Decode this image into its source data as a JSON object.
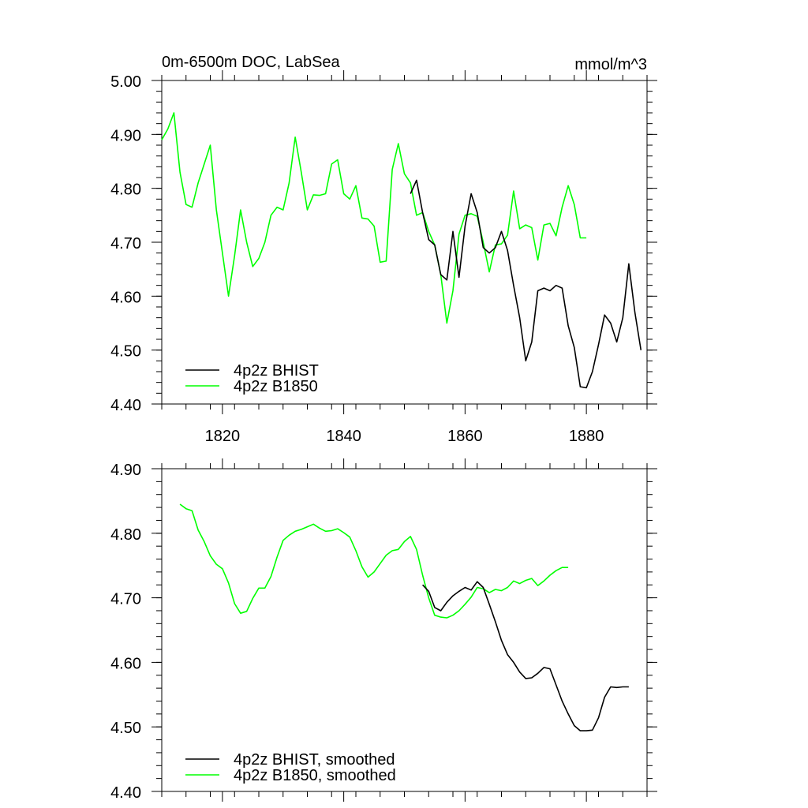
{
  "chart_data": [
    {
      "type": "line",
      "title": "0m-6500m DOC, LabSea",
      "units": "mmol/m^3",
      "xlim": [
        1810,
        1890
      ],
      "ylim": [
        4.4,
        5.0
      ],
      "x_ticks": [
        1820,
        1840,
        1860,
        1880
      ],
      "y_ticks": [
        "4.40",
        "4.50",
        "4.60",
        "4.70",
        "4.80",
        "4.90",
        "5.00"
      ],
      "legend_position": "bottom-left",
      "series": [
        {
          "name": "4p2z BHIST",
          "color": "#000000",
          "x": [
            1851,
            1852,
            1853,
            1854,
            1855,
            1856,
            1857,
            1858,
            1859,
            1860,
            1861,
            1862,
            1863,
            1864,
            1865,
            1866,
            1867,
            1868,
            1869,
            1870,
            1871,
            1872,
            1873,
            1874,
            1875,
            1876,
            1877,
            1878,
            1879,
            1880,
            1881,
            1882,
            1883,
            1884,
            1885,
            1886,
            1887,
            1888,
            1889
          ],
          "y": [
            4.79,
            4.815,
            4.755,
            4.705,
            4.695,
            4.64,
            4.63,
            4.72,
            4.635,
            4.73,
            4.79,
            4.755,
            4.69,
            4.68,
            4.69,
            4.72,
            4.685,
            4.62,
            4.56,
            4.48,
            4.515,
            4.61,
            4.615,
            4.61,
            4.62,
            4.615,
            4.545,
            4.505,
            4.432,
            4.43,
            4.46,
            4.51,
            4.565,
            4.55,
            4.515,
            4.56,
            4.66,
            4.57,
            4.5
          ]
        },
        {
          "name": "4p2z B1850",
          "color": "#00ff00",
          "x": [
            1810,
            1811,
            1812,
            1813,
            1814,
            1815,
            1816,
            1817,
            1818,
            1819,
            1820,
            1821,
            1822,
            1823,
            1824,
            1825,
            1826,
            1827,
            1828,
            1829,
            1830,
            1831,
            1832,
            1833,
            1834,
            1835,
            1836,
            1837,
            1838,
            1839,
            1840,
            1841,
            1842,
            1843,
            1844,
            1845,
            1846,
            1847,
            1848,
            1849,
            1850,
            1851,
            1852,
            1853,
            1854,
            1855,
            1856,
            1857,
            1858,
            1859,
            1860,
            1861,
            1862,
            1863,
            1864,
            1865,
            1866,
            1867,
            1868,
            1869,
            1870,
            1871,
            1872,
            1873,
            1874,
            1875,
            1876,
            1877,
            1878,
            1879,
            1880
          ],
          "y": [
            4.89,
            4.91,
            4.94,
            4.83,
            4.77,
            4.765,
            4.81,
            4.845,
            4.88,
            4.76,
            4.68,
            4.6,
            4.675,
            4.76,
            4.7,
            4.655,
            4.67,
            4.7,
            4.75,
            4.765,
            4.76,
            4.81,
            4.895,
            4.83,
            4.76,
            4.788,
            4.787,
            4.79,
            4.845,
            4.853,
            4.79,
            4.78,
            4.805,
            4.745,
            4.743,
            4.73,
            4.663,
            4.665,
            4.835,
            4.883,
            4.827,
            4.81,
            4.75,
            4.755,
            4.72,
            4.695,
            4.64,
            4.55,
            4.61,
            4.715,
            4.75,
            4.753,
            4.748,
            4.7,
            4.645,
            4.695,
            4.697,
            4.713,
            4.795,
            4.725,
            4.732,
            4.727,
            4.667,
            4.732,
            4.735,
            4.712,
            4.765,
            4.805,
            4.77,
            4.708,
            4.708
          ]
        }
      ]
    },
    {
      "type": "line",
      "xlim": [
        1810,
        1890
      ],
      "ylim": [
        4.4,
        4.9
      ],
      "y_ticks": [
        "4.40",
        "4.50",
        "4.60",
        "4.70",
        "4.80",
        "4.90"
      ],
      "legend_position": "bottom-left",
      "series": [
        {
          "name": "4p2z BHIST, smoothed",
          "color": "#000000",
          "x": [
            1853,
            1854,
            1855,
            1856,
            1857,
            1858,
            1859,
            1860,
            1861,
            1862,
            1863,
            1864,
            1865,
            1866,
            1867,
            1868,
            1869,
            1870,
            1871,
            1872,
            1873,
            1874,
            1875,
            1876,
            1877,
            1878,
            1879,
            1880,
            1881,
            1882,
            1883,
            1884,
            1885,
            1886,
            1887
          ],
          "y": [
            4.72,
            4.71,
            4.685,
            4.68,
            4.693,
            4.703,
            4.71,
            4.716,
            4.712,
            4.725,
            4.716,
            4.69,
            4.663,
            4.634,
            4.612,
            4.6,
            4.585,
            4.575,
            4.576,
            4.583,
            4.592,
            4.59,
            4.565,
            4.54,
            4.52,
            4.502,
            4.494,
            4.494,
            4.495,
            4.514,
            4.546,
            4.562,
            4.561,
            4.562,
            4.562
          ]
        },
        {
          "name": "4p2z B1850, smoothed",
          "color": "#00ff00",
          "x": [
            1813,
            1814,
            1815,
            1816,
            1817,
            1818,
            1819,
            1820,
            1821,
            1822,
            1823,
            1824,
            1825,
            1826,
            1827,
            1828,
            1829,
            1830,
            1831,
            1832,
            1833,
            1834,
            1835,
            1836,
            1837,
            1838,
            1839,
            1840,
            1841,
            1842,
            1843,
            1844,
            1845,
            1846,
            1847,
            1848,
            1849,
            1850,
            1851,
            1852,
            1853,
            1854,
            1855,
            1856,
            1857,
            1858,
            1859,
            1860,
            1861,
            1862,
            1863,
            1864,
            1865,
            1866,
            1867,
            1868,
            1869,
            1870,
            1871,
            1872,
            1873,
            1874,
            1875,
            1876,
            1877
          ],
          "y": [
            4.845,
            4.838,
            4.835,
            4.805,
            4.787,
            4.765,
            4.752,
            4.745,
            4.723,
            4.691,
            4.676,
            4.679,
            4.699,
            4.715,
            4.715,
            4.733,
            4.763,
            4.789,
            4.797,
            4.803,
            4.806,
            4.81,
            4.814,
            4.808,
            4.803,
            4.804,
            4.807,
            4.801,
            4.794,
            4.773,
            4.748,
            4.732,
            4.74,
            4.753,
            4.766,
            4.773,
            4.775,
            4.787,
            4.795,
            4.775,
            4.735,
            4.7,
            4.673,
            4.67,
            4.669,
            4.673,
            4.68,
            4.69,
            4.701,
            4.716,
            4.714,
            4.708,
            4.713,
            4.711,
            4.716,
            4.726,
            4.722,
            4.727,
            4.73,
            4.719,
            4.726,
            4.735,
            4.742,
            4.747,
            4.747
          ]
        }
      ]
    }
  ]
}
